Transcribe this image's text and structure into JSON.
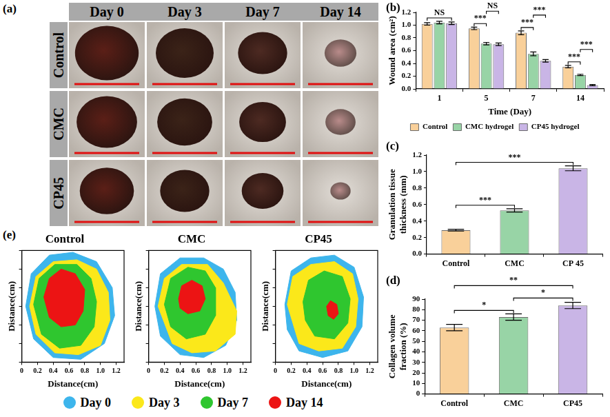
{
  "figure": {
    "a": {
      "panel_label": "(a)",
      "columns": [
        "Day 0",
        "Day 3",
        "Day 7",
        "Day 14"
      ],
      "rows": [
        "Control",
        "CMC",
        "CP45"
      ]
    }
  },
  "chart_data": [
    {
      "type": "bar",
      "panel_label": "(b)",
      "x_label": "Time (Day)",
      "y_label": "Wound area (cm²)",
      "categories": [
        "1",
        "5",
        "7",
        "14"
      ],
      "series": [
        {
          "name": "Control",
          "color": "#f9d09a",
          "values": [
            1.02,
            0.95,
            0.88,
            0.35
          ],
          "errors": [
            0.02,
            0.02,
            0.03,
            0.02
          ]
        },
        {
          "name": "CMC hydrogel",
          "color": "#98d4a6",
          "values": [
            1.04,
            0.71,
            0.55,
            0.22
          ],
          "errors": [
            0.02,
            0.02,
            0.03,
            0.01
          ]
        },
        {
          "name": "CP45 hydrogel",
          "color": "#c9b5e6",
          "values": [
            1.03,
            0.7,
            0.44,
            0.06
          ],
          "errors": [
            0.02,
            0.02,
            0.02,
            0.01
          ]
        }
      ],
      "ylim": [
        0,
        1.2
      ],
      "yticks": [
        {
          "value": 0,
          "label": "0.0"
        },
        0.2,
        0.4,
        0.6,
        0.8,
        {
          "value": 1,
          "label": "1.0"
        },
        1.2
      ],
      "grid": false,
      "legend": "bottom",
      "annotations": [
        {
          "category": "1",
          "from": "Control",
          "to": "CP45 hydrogel",
          "label": "NS"
        },
        {
          "category": "5",
          "from": "Control",
          "to": "CMC hydrogel",
          "label": "***"
        },
        {
          "category": "5",
          "from": "CMC hydrogel",
          "to": "CP45 hydrogel",
          "label": "NS"
        },
        {
          "category": "7",
          "from": "Control",
          "to": "CMC hydrogel",
          "label": "***"
        },
        {
          "category": "7",
          "from": "CMC hydrogel",
          "to": "CP45 hydrogel",
          "label": "***"
        },
        {
          "category": "14",
          "from": "Control",
          "to": "CMC hydrogel",
          "label": "***"
        },
        {
          "category": "14",
          "from": "CMC hydrogel",
          "to": "CP45 hydrogel",
          "label": "***"
        }
      ]
    },
    {
      "type": "bar",
      "panel_label": "(c)",
      "y_label": "Granulation tissue thickness (mm)",
      "categories": [
        "Control",
        "CMC",
        "CP 45"
      ],
      "values": [
        0.29,
        0.53,
        1.04
      ],
      "errors": [
        0.01,
        0.02,
        0.03
      ],
      "colors": [
        "#f9d09a",
        "#98d4a6",
        "#c9b5e6"
      ],
      "ylim": [
        0,
        1.2
      ],
      "yticks": [
        {
          "value": 0,
          "label": "0.0"
        },
        0.2,
        0.4,
        0.6,
        0.8,
        {
          "value": 1,
          "label": "1.0"
        },
        1.2
      ],
      "grid": false,
      "annotations": [
        {
          "from": "Control",
          "to": "CMC",
          "label": "***"
        },
        {
          "from": "Control",
          "to": "CP 45",
          "label": "***"
        }
      ]
    },
    {
      "type": "bar",
      "panel_label": "(d)",
      "y_label": "Collagen volume fraction (%)",
      "categories": [
        "Control",
        "CMC",
        "CP45"
      ],
      "values": [
        63,
        73,
        84
      ],
      "errors": [
        3,
        3,
        3
      ],
      "colors": [
        "#f9d09a",
        "#98d4a6",
        "#c9b5e6"
      ],
      "ylim": [
        0,
        90
      ],
      "yticks": [
        0,
        10,
        20,
        30,
        40,
        50,
        60,
        70,
        80,
        90
      ],
      "grid": false,
      "annotations": [
        {
          "from": "Control",
          "to": "CMC",
          "label": "*"
        },
        {
          "from": "CMC",
          "to": "CP45",
          "label": "*"
        },
        {
          "from": "Control",
          "to": "CP45",
          "label": "**"
        }
      ]
    },
    {
      "type": "area",
      "panel_label": "(e)",
      "x_label": "Distance(cm)",
      "y_label": "Distance(cm)",
      "xlim": [
        0,
        1.3
      ],
      "xticks": [
        0,
        0.2,
        0.4,
        0.6,
        0.8,
        {
          "value": 1,
          "label": "1.0"
        },
        1.2
      ],
      "ylim": [
        0,
        1.2
      ],
      "tick_labels": "x",
      "grid": false,
      "legend": "bottom",
      "series": [
        {
          "name": "Day 0",
          "color": "#3db5ec"
        },
        {
          "name": "Day 3",
          "color": "#fbe81a"
        },
        {
          "name": "Day 7",
          "color": "#2fc62f"
        },
        {
          "name": "Day 14",
          "color": "#ec1414"
        }
      ],
      "panels": [
        {
          "title": "Control",
          "areas": [
            [
              [
                0.05,
                0.6
              ],
              [
                0.12,
                0.95
              ],
              [
                0.35,
                1.15
              ],
              [
                0.65,
                1.18
              ],
              [
                0.95,
                1.08
              ],
              [
                1.15,
                0.8
              ],
              [
                1.18,
                0.5
              ],
              [
                1.05,
                0.2
              ],
              [
                0.75,
                0.03
              ],
              [
                0.4,
                0.05
              ],
              [
                0.15,
                0.25
              ],
              [
                0.05,
                0.6
              ]
            ],
            [
              [
                0.1,
                0.6
              ],
              [
                0.18,
                0.92
              ],
              [
                0.4,
                1.08
              ],
              [
                0.7,
                1.1
              ],
              [
                0.95,
                1.0
              ],
              [
                1.1,
                0.75
              ],
              [
                1.12,
                0.45
              ],
              [
                1.0,
                0.18
              ],
              [
                0.72,
                0.08
              ],
              [
                0.42,
                0.1
              ],
              [
                0.18,
                0.3
              ],
              [
                0.1,
                0.6
              ]
            ],
            [
              [
                0.15,
                0.62
              ],
              [
                0.22,
                0.9
              ],
              [
                0.42,
                1.05
              ],
              [
                0.7,
                1.05
              ],
              [
                0.88,
                0.9
              ],
              [
                0.95,
                0.65
              ],
              [
                0.92,
                0.38
              ],
              [
                0.75,
                0.18
              ],
              [
                0.48,
                0.15
              ],
              [
                0.25,
                0.3
              ],
              [
                0.15,
                0.62
              ]
            ],
            [
              [
                0.28,
                0.7
              ],
              [
                0.35,
                0.9
              ],
              [
                0.5,
                1.0
              ],
              [
                0.68,
                0.95
              ],
              [
                0.8,
                0.78
              ],
              [
                0.78,
                0.55
              ],
              [
                0.68,
                0.4
              ],
              [
                0.5,
                0.38
              ],
              [
                0.35,
                0.48
              ],
              [
                0.28,
                0.7
              ]
            ]
          ]
        },
        {
          "title": "CMC",
          "areas": [
            [
              [
                0.08,
                0.6
              ],
              [
                0.15,
                0.95
              ],
              [
                0.4,
                1.12
              ],
              [
                0.7,
                1.12
              ],
              [
                0.95,
                1.0
              ],
              [
                1.1,
                0.75
              ],
              [
                1.12,
                0.45
              ],
              [
                0.98,
                0.18
              ],
              [
                0.7,
                0.05
              ],
              [
                0.4,
                0.08
              ],
              [
                0.15,
                0.28
              ],
              [
                0.08,
                0.6
              ]
            ],
            [
              [
                0.12,
                0.6
              ],
              [
                0.2,
                0.9
              ],
              [
                0.42,
                1.05
              ],
              [
                0.75,
                1.05
              ],
              [
                0.95,
                0.85
              ],
              [
                1.12,
                0.55
              ],
              [
                1.1,
                0.3
              ],
              [
                0.85,
                0.12
              ],
              [
                0.55,
                0.1
              ],
              [
                0.3,
                0.2
              ],
              [
                0.12,
                0.6
              ]
            ],
            [
              [
                0.2,
                0.62
              ],
              [
                0.28,
                0.9
              ],
              [
                0.5,
                1.02
              ],
              [
                0.72,
                0.98
              ],
              [
                0.85,
                0.8
              ],
              [
                0.85,
                0.5
              ],
              [
                0.72,
                0.3
              ],
              [
                0.48,
                0.25
              ],
              [
                0.28,
                0.38
              ],
              [
                0.2,
                0.62
              ]
            ],
            [
              [
                0.38,
                0.68
              ],
              [
                0.42,
                0.82
              ],
              [
                0.55,
                0.88
              ],
              [
                0.68,
                0.82
              ],
              [
                0.72,
                0.68
              ],
              [
                0.65,
                0.55
              ],
              [
                0.5,
                0.52
              ],
              [
                0.4,
                0.58
              ],
              [
                0.38,
                0.68
              ]
            ]
          ]
        },
        {
          "title": "CP45",
          "areas": [
            [
              [
                0.12,
                0.62
              ],
              [
                0.2,
                0.98
              ],
              [
                0.45,
                1.12
              ],
              [
                0.75,
                1.15
              ],
              [
                1.0,
                1.02
              ],
              [
                1.12,
                0.7
              ],
              [
                1.1,
                0.38
              ],
              [
                0.92,
                0.12
              ],
              [
                0.6,
                0.05
              ],
              [
                0.3,
                0.12
              ],
              [
                0.15,
                0.35
              ],
              [
                0.12,
                0.62
              ]
            ],
            [
              [
                0.15,
                0.62
              ],
              [
                0.22,
                0.92
              ],
              [
                0.45,
                1.05
              ],
              [
                0.75,
                1.08
              ],
              [
                0.98,
                0.95
              ],
              [
                1.05,
                0.68
              ],
              [
                1.02,
                0.38
              ],
              [
                0.85,
                0.15
              ],
              [
                0.55,
                0.12
              ],
              [
                0.3,
                0.2
              ],
              [
                0.15,
                0.62
              ]
            ],
            [
              [
                0.35,
                0.65
              ],
              [
                0.42,
                0.88
              ],
              [
                0.62,
                0.98
              ],
              [
                0.85,
                0.92
              ],
              [
                0.95,
                0.68
              ],
              [
                0.92,
                0.42
              ],
              [
                0.75,
                0.25
              ],
              [
                0.5,
                0.28
              ],
              [
                0.38,
                0.45
              ],
              [
                0.35,
                0.65
              ]
            ],
            [
              [
                0.65,
                0.6
              ],
              [
                0.7,
                0.66
              ],
              [
                0.78,
                0.62
              ],
              [
                0.8,
                0.52
              ],
              [
                0.74,
                0.46
              ],
              [
                0.67,
                0.5
              ],
              [
                0.65,
                0.6
              ]
            ]
          ]
        }
      ]
    }
  ]
}
